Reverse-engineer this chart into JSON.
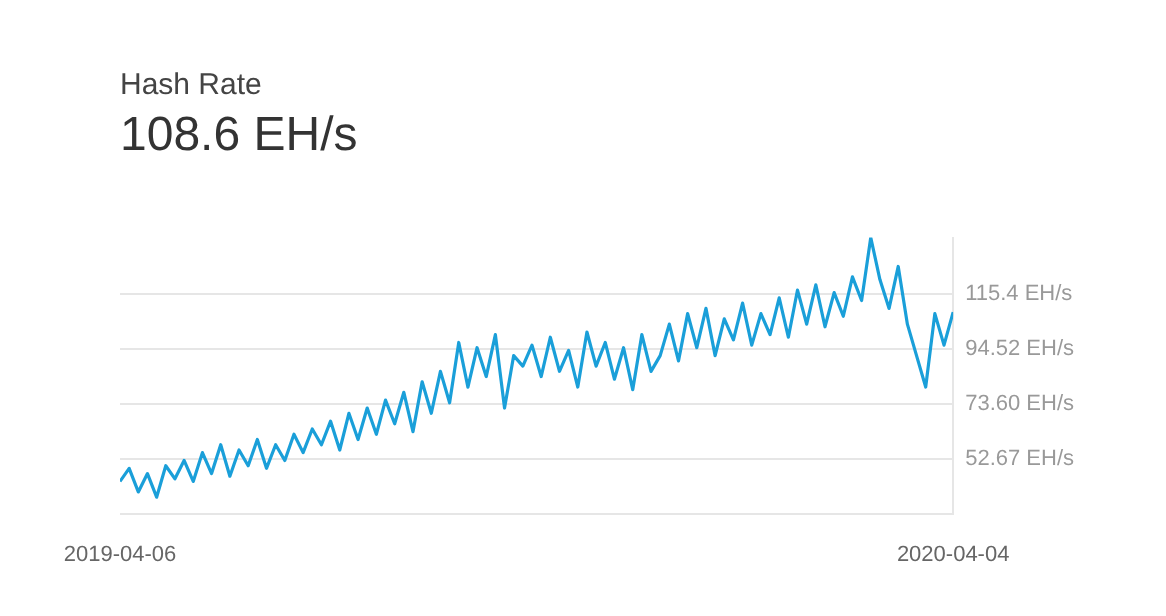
{
  "chart_data": {
    "type": "line",
    "title": "Hash Rate",
    "subtitle": "108.6 EH/s",
    "x": [
      "2019-04-06",
      "2019-04-10",
      "2019-04-14",
      "2019-04-18",
      "2019-04-22",
      "2019-04-26",
      "2019-04-30",
      "2019-05-04",
      "2019-05-08",
      "2019-05-12",
      "2019-05-16",
      "2019-05-20",
      "2019-05-24",
      "2019-05-28",
      "2019-06-01",
      "2019-06-05",
      "2019-06-09",
      "2019-06-13",
      "2019-06-17",
      "2019-06-21",
      "2019-06-25",
      "2019-06-29",
      "2019-07-03",
      "2019-07-07",
      "2019-07-11",
      "2019-07-15",
      "2019-07-19",
      "2019-07-23",
      "2019-07-27",
      "2019-07-31",
      "2019-08-04",
      "2019-08-08",
      "2019-08-12",
      "2019-08-16",
      "2019-08-20",
      "2019-08-24",
      "2019-08-28",
      "2019-09-01",
      "2019-09-05",
      "2019-09-09",
      "2019-09-13",
      "2019-09-17",
      "2019-09-21",
      "2019-09-25",
      "2019-09-29",
      "2019-10-03",
      "2019-10-07",
      "2019-10-11",
      "2019-10-15",
      "2019-10-19",
      "2019-10-23",
      "2019-10-27",
      "2019-10-31",
      "2019-11-04",
      "2019-11-08",
      "2019-11-12",
      "2019-11-16",
      "2019-11-20",
      "2019-11-24",
      "2019-11-28",
      "2019-12-02",
      "2019-12-06",
      "2019-12-10",
      "2019-12-14",
      "2019-12-18",
      "2019-12-22",
      "2019-12-26",
      "2019-12-30",
      "2020-01-03",
      "2020-01-07",
      "2020-01-11",
      "2020-01-15",
      "2020-01-19",
      "2020-01-23",
      "2020-01-27",
      "2020-01-31",
      "2020-02-04",
      "2020-02-08",
      "2020-02-12",
      "2020-02-16",
      "2020-02-20",
      "2020-02-24",
      "2020-02-28",
      "2020-03-03",
      "2020-03-07",
      "2020-03-11",
      "2020-03-15",
      "2020-03-19",
      "2020-03-23",
      "2020-03-27",
      "2020-03-31",
      "2020-04-04"
    ],
    "series": [
      {
        "color": "#1a9fd9",
        "values": [
          44,
          49,
          40,
          47,
          38,
          50,
          45,
          52,
          44,
          55,
          47,
          58,
          46,
          56,
          50,
          60,
          49,
          58,
          52,
          62,
          55,
          64,
          58,
          67,
          56,
          70,
          60,
          72,
          62,
          75,
          66,
          78,
          63,
          82,
          70,
          86,
          74,
          97,
          80,
          95,
          84,
          100,
          72,
          92,
          88,
          96,
          84,
          99,
          86,
          94,
          80,
          101,
          88,
          97,
          83,
          95,
          79,
          100,
          86,
          92,
          104,
          90,
          108,
          95,
          110,
          92,
          106,
          98,
          112,
          96,
          108,
          100,
          114,
          99,
          117,
          104,
          119,
          103,
          116,
          107,
          122,
          113,
          137,
          121,
          110,
          126,
          104,
          92,
          80,
          108,
          96,
          108.6
        ]
      }
    ],
    "xlim": [
      "2019-04-06",
      "2020-04-04"
    ],
    "xticks": [
      {
        "value": "2019-04-06",
        "label": "2019-04-06"
      },
      {
        "value": "2020-04-04",
        "label": "2020-04-04"
      }
    ],
    "ylim": [
      31.74,
      137
    ],
    "yticks": [
      {
        "value": 31.74,
        "label": null
      },
      {
        "value": 52.67,
        "label": "52.67 EH/s"
      },
      {
        "value": 73.6,
        "label": "73.60 EH/s"
      },
      {
        "value": 94.52,
        "label": "94.52 EH/s"
      },
      {
        "value": 115.4,
        "label": "115.4 EH/s"
      }
    ],
    "grid": "y",
    "marker": "none",
    "line_style": "solid",
    "legend": false
  }
}
